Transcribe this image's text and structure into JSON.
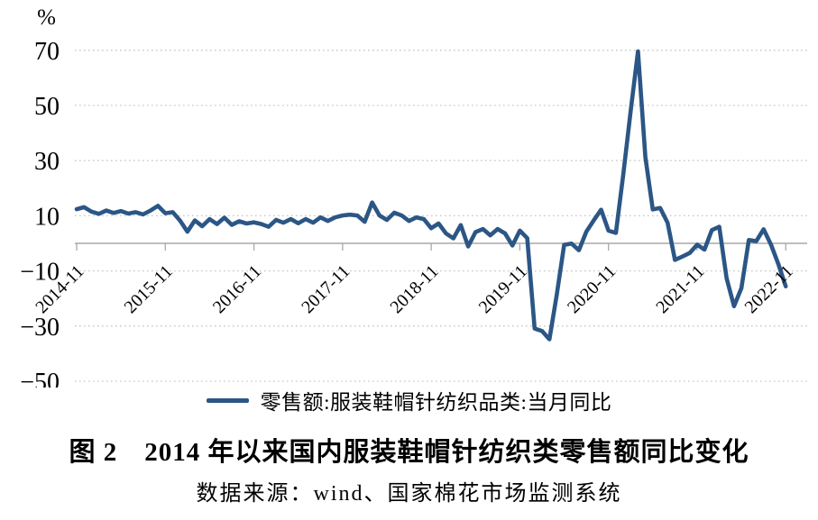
{
  "figure": {
    "title": "图 2　2014 年以来国内服装鞋帽针纺织类零售额同比变化",
    "source": "数据来源：wind、国家棉花市场监测系统"
  },
  "chart_data": {
    "type": "line",
    "title": "图 2　2014 年以来国内服装鞋帽针纺织类零售额同比变化",
    "xlabel": "",
    "ylabel": "%",
    "ylim": [
      -50,
      70
    ],
    "y_ticks": [
      70,
      50,
      30,
      10,
      -10,
      -30,
      -50
    ],
    "y_tick_labels": [
      "70",
      "50",
      "30",
      "10",
      "−10",
      "−30",
      "−50"
    ],
    "x_tick_labels": [
      "2014-11",
      "2015-11",
      "2016-11",
      "2017-11",
      "2018-11",
      "2019-11",
      "2020-11",
      "2021-11",
      "2022-11"
    ],
    "grid": "horizontal-dotted",
    "legend_position": "bottom-center",
    "line_color": "#2B5685",
    "gridline_color": "#c6c6c6",
    "axis_color": "#a9a9a9",
    "x": [
      "2014-11",
      "2014-12",
      "2015-01",
      "2015-02",
      "2015-03",
      "2015-04",
      "2015-05",
      "2015-06",
      "2015-07",
      "2015-08",
      "2015-09",
      "2015-10",
      "2015-11",
      "2015-12",
      "2016-01",
      "2016-02",
      "2016-03",
      "2016-04",
      "2016-05",
      "2016-06",
      "2016-07",
      "2016-08",
      "2016-09",
      "2016-10",
      "2016-11",
      "2016-12",
      "2017-01",
      "2017-02",
      "2017-03",
      "2017-04",
      "2017-05",
      "2017-06",
      "2017-07",
      "2017-08",
      "2017-09",
      "2017-10",
      "2017-11",
      "2017-12",
      "2018-01",
      "2018-02",
      "2018-03",
      "2018-04",
      "2018-05",
      "2018-06",
      "2018-07",
      "2018-08",
      "2018-09",
      "2018-10",
      "2018-11",
      "2018-12",
      "2019-01",
      "2019-02",
      "2019-03",
      "2019-04",
      "2019-05",
      "2019-06",
      "2019-07",
      "2019-08",
      "2019-09",
      "2019-10",
      "2019-11",
      "2019-12",
      "2020-01",
      "2020-02",
      "2020-03",
      "2020-04",
      "2020-05",
      "2020-06",
      "2020-07",
      "2020-08",
      "2020-09",
      "2020-10",
      "2020-11",
      "2020-12",
      "2021-01",
      "2021-02",
      "2021-03",
      "2021-04",
      "2021-05",
      "2021-06",
      "2021-07",
      "2021-08",
      "2021-09",
      "2021-10",
      "2021-11",
      "2021-12",
      "2022-01",
      "2022-02",
      "2022-03",
      "2022-04",
      "2022-05",
      "2022-06",
      "2022-07",
      "2022-08",
      "2022-09",
      "2022-10",
      "2022-11"
    ],
    "series": [
      {
        "name": "零售额:服装鞋帽针纺织品类:当月同比",
        "values": [
          12.4,
          13.1,
          11.5,
          10.7,
          11.9,
          11.0,
          11.7,
          10.8,
          11.3,
          10.5,
          11.9,
          13.6,
          10.9,
          11.3,
          8.2,
          4.2,
          8.3,
          6.2,
          8.8,
          7.0,
          9.3,
          6.7,
          8.0,
          7.2,
          7.6,
          7.0,
          6.0,
          8.5,
          7.5,
          8.8,
          7.3,
          8.8,
          7.5,
          9.4,
          8.1,
          9.4,
          10.1,
          10.4,
          10.1,
          7.8,
          14.8,
          10.1,
          8.5,
          11.1,
          10.1,
          8.1,
          9.4,
          8.8,
          5.5,
          7.2,
          3.6,
          1.8,
          6.6,
          -1.1,
          4.1,
          5.2,
          2.9,
          5.2,
          3.6,
          -0.8,
          4.6,
          1.9,
          -30.9,
          -31.8,
          -34.8,
          -18.5,
          -0.6,
          -0.1,
          -2.5,
          4.2,
          8.3,
          12.2,
          4.6,
          3.8,
          25.0,
          48.0,
          69.6,
          31.2,
          12.3,
          12.8,
          7.5,
          -6.0,
          -4.8,
          -3.5,
          -0.5,
          -2.3,
          4.8,
          6.0,
          -12.7,
          -22.8,
          -16.2,
          1.2,
          0.8,
          5.1,
          -0.5,
          -7.5,
          -15.6
        ]
      }
    ]
  }
}
